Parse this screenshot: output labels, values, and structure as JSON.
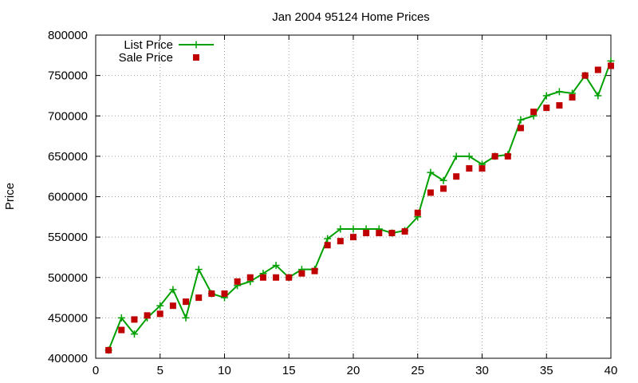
{
  "chart_data": {
    "type": "line",
    "title": "Jan 2004 95124 Home Prices",
    "xlabel": "",
    "ylabel": "Price",
    "xlim": [
      0,
      40
    ],
    "ylim": [
      400000,
      800000
    ],
    "xticks": [
      "0",
      "5",
      "10",
      "15",
      "20",
      "25",
      "30",
      "35",
      "40"
    ],
    "yticks": [
      "400000",
      "450000",
      "500000",
      "550000",
      "600000",
      "650000",
      "700000",
      "750000",
      "800000"
    ],
    "grid": true,
    "legend_position": "top-left",
    "series": [
      {
        "name": "List Price",
        "style": "line+cross",
        "color": "#00a000",
        "x": [
          1,
          2,
          3,
          4,
          5,
          6,
          7,
          8,
          9,
          10,
          11,
          12,
          13,
          14,
          15,
          16,
          17,
          18,
          19,
          20,
          21,
          22,
          23,
          24,
          25,
          26,
          27,
          28,
          29,
          30,
          31,
          32,
          33,
          34,
          35,
          36,
          37,
          38,
          39,
          40
        ],
        "values": [
          410000,
          450000,
          430000,
          450000,
          465000,
          485000,
          450000,
          510000,
          480000,
          475000,
          490000,
          495000,
          505000,
          515000,
          500000,
          510000,
          510000,
          548000,
          560000,
          560000,
          560000,
          560000,
          555000,
          558000,
          575000,
          630000,
          620000,
          650000,
          650000,
          640000,
          650000,
          652000,
          695000,
          700000,
          725000,
          730000,
          728000,
          750000,
          725000,
          768000
        ]
      },
      {
        "name": "Sale Price",
        "style": "points-square",
        "color": "#c00000",
        "x": [
          1,
          2,
          3,
          4,
          5,
          6,
          7,
          8,
          9,
          10,
          11,
          12,
          13,
          14,
          15,
          16,
          17,
          18,
          19,
          20,
          21,
          22,
          23,
          24,
          25,
          26,
          27,
          28,
          29,
          30,
          31,
          32,
          33,
          34,
          35,
          36,
          37,
          38,
          39,
          40
        ],
        "values": [
          410000,
          435000,
          448000,
          453000,
          455000,
          465000,
          470000,
          475000,
          480000,
          480000,
          495000,
          500000,
          500000,
          500000,
          500000,
          505000,
          508000,
          540000,
          545000,
          550000,
          555000,
          555000,
          555000,
          557000,
          580000,
          605000,
          610000,
          625000,
          635000,
          635000,
          650000,
          650000,
          685000,
          705000,
          710000,
          713000,
          723000,
          750000,
          757000,
          762000
        ]
      }
    ]
  }
}
